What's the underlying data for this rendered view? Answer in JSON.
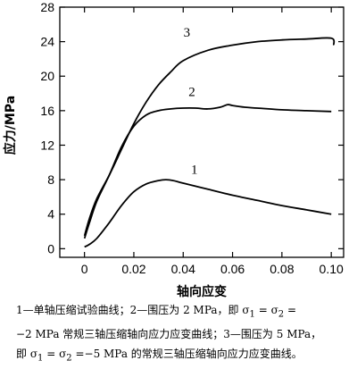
{
  "chart_data": {
    "type": "line",
    "xlabel": "轴向应变",
    "ylabel": "应力/MPa",
    "xlim": [
      -0.01,
      0.105
    ],
    "ylim": [
      -1,
      28
    ],
    "x_ticks": [
      "0",
      "0.02",
      "0.04",
      "0.06",
      "0.08",
      "0.10"
    ],
    "y_ticks": [
      "0",
      "4",
      "8",
      "12",
      "16",
      "20",
      "24",
      "28"
    ],
    "series": [
      {
        "name": "1",
        "color": "#000000",
        "x": [
          0,
          0.002,
          0.005,
          0.01,
          0.015,
          0.02,
          0.025,
          0.03,
          0.033,
          0.036,
          0.04,
          0.05,
          0.06,
          0.07,
          0.08,
          0.09,
          0.1
        ],
        "y": [
          0.2,
          0.5,
          1.2,
          3.0,
          5.0,
          6.6,
          7.5,
          7.9,
          8.0,
          7.9,
          7.6,
          6.9,
          6.2,
          5.6,
          5.0,
          4.5,
          4.0
        ]
      },
      {
        "name": "2",
        "color": "#000000",
        "x": [
          0,
          0.002,
          0.005,
          0.01,
          0.015,
          0.02,
          0.025,
          0.03,
          0.035,
          0.04,
          0.045,
          0.05,
          0.055,
          0.058,
          0.06,
          0.065,
          0.07,
          0.08,
          0.09,
          0.1
        ],
        "y": [
          1.2,
          3.0,
          5.5,
          8.5,
          11.8,
          14.2,
          15.5,
          16.0,
          16.2,
          16.3,
          16.3,
          16.2,
          16.4,
          16.7,
          16.6,
          16.4,
          16.3,
          16.1,
          16.0,
          15.9
        ]
      },
      {
        "name": "3",
        "color": "#000000",
        "x": [
          0,
          0.002,
          0.005,
          0.01,
          0.015,
          0.02,
          0.025,
          0.03,
          0.035,
          0.04,
          0.05,
          0.06,
          0.07,
          0.08,
          0.09,
          0.1,
          0.101
        ],
        "y": [
          1.5,
          3.5,
          5.8,
          8.5,
          11.5,
          14.5,
          17.0,
          19.0,
          20.5,
          21.8,
          23.0,
          23.6,
          24.0,
          24.2,
          24.3,
          24.4,
          23.6
        ]
      }
    ],
    "curve_labels": [
      {
        "text": "1",
        "x": 0.0445,
        "y": 8.7
      },
      {
        "text": "2",
        "x": 0.0435,
        "y": 17.7
      },
      {
        "text": "3",
        "x": 0.0415,
        "y": 24.6
      }
    ]
  },
  "caption": {
    "line1_a": "1—单轴压缩试验曲线；2—围压为 2 MPa，即 σ",
    "line1_b": " = σ",
    "line1_c": " =",
    "line2": "−2 MPa 常规三轴压缩轴向应力应变曲线；3—围压为 5 MPa，",
    "line3_a": "即 σ",
    "line3_b": " = σ",
    "line3_c": " =−5 MPa 的常规三轴压缩轴向应力应变曲线。",
    "sub1": "1",
    "sub2": "2"
  }
}
